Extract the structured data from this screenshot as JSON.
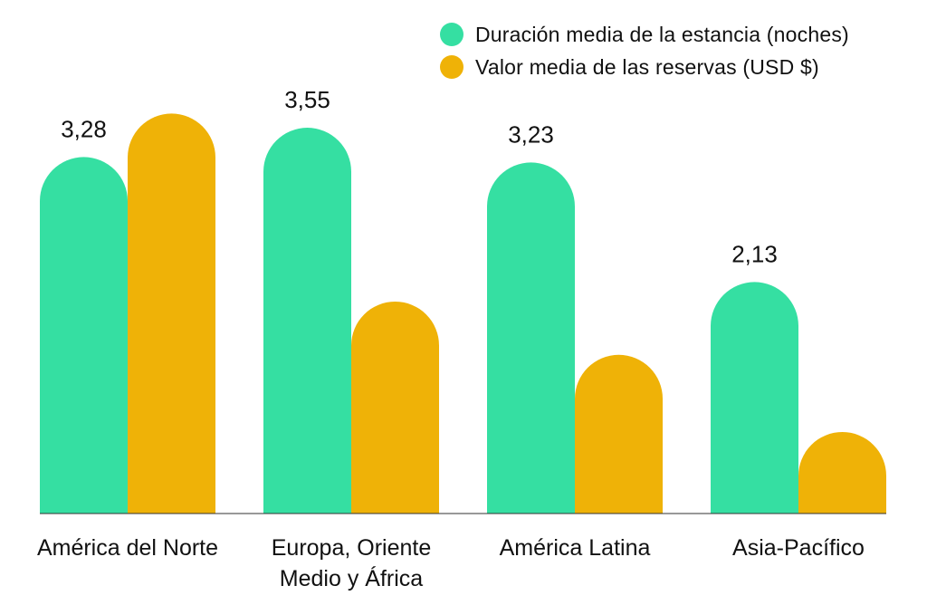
{
  "chart_data": {
    "type": "bar",
    "categories": [
      "América del Norte",
      "Europa, Oriente Medio y África",
      "América Latina",
      "Asia-Pacífico"
    ],
    "series": [
      {
        "name": "Duración media de la estancia (noches)",
        "color": "#35DFA2",
        "values": [
          3.28,
          3.55,
          3.23,
          2.13
        ],
        "labels": [
          "3,28",
          "3,55",
          "3,23",
          "2,13"
        ]
      },
      {
        "name": "Valor media de las reservas (USD $)",
        "color": "#EFB207",
        "values": [
          3.68,
          1.95,
          1.46,
          0.75
        ]
      }
    ],
    "ylim": [
      0,
      4
    ],
    "grid": false,
    "legend_position": "top-right",
    "baseline_color": "#333333"
  }
}
